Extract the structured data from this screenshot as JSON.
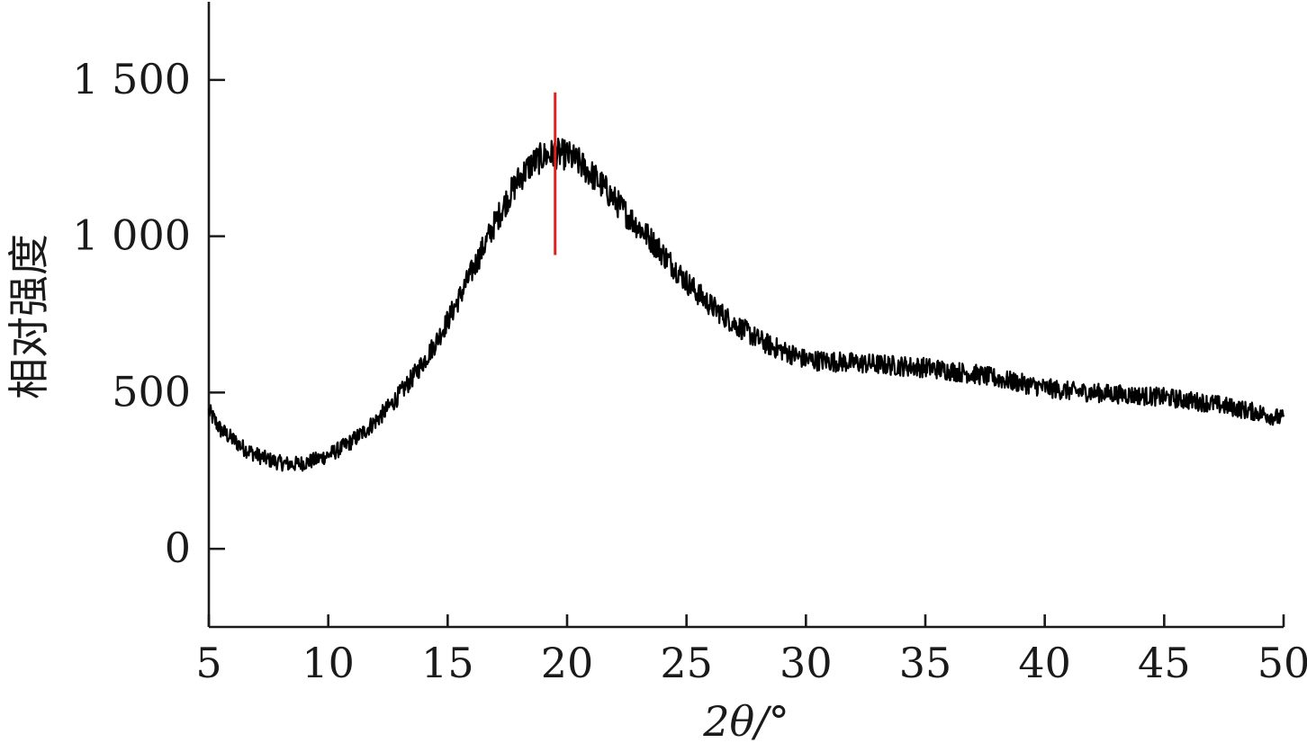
{
  "chart_data": {
    "type": "line",
    "title": "",
    "xlabel": "2θ/°",
    "ylabel": "相对强度",
    "xlim": [
      5,
      50
    ],
    "ylim": [
      -250,
      1750
    ],
    "x_ticks": [
      5,
      10,
      15,
      20,
      25,
      30,
      35,
      40,
      45,
      50
    ],
    "x_tick_labels": [
      "5",
      "10",
      "15",
      "20",
      "25",
      "30",
      "35",
      "40",
      "45",
      "50"
    ],
    "y_ticks": [
      0,
      500,
      1000,
      1500
    ],
    "y_tick_labels": [
      "0",
      "500",
      "1 000",
      "1 500"
    ],
    "grid": false,
    "legend": "none",
    "series": [
      {
        "color": "#000000",
        "x": [
          5,
          5.5,
          6,
          6.5,
          7,
          7.5,
          8,
          8.5,
          9,
          9.5,
          10,
          10.5,
          11,
          11.5,
          12,
          12.5,
          13,
          13.5,
          14,
          14.5,
          15,
          15.5,
          16,
          16.5,
          17,
          17.5,
          18,
          18.5,
          19,
          19.5,
          20,
          20.5,
          21,
          21.5,
          22,
          22.5,
          23,
          23.5,
          24,
          24.5,
          25,
          25.5,
          26,
          26.5,
          27,
          27.5,
          28,
          28.5,
          29,
          29.5,
          30,
          31,
          32,
          33,
          34,
          35,
          36,
          37,
          38,
          39,
          40,
          41,
          42,
          43,
          44,
          45,
          46,
          47,
          48,
          49,
          50
        ],
        "values": [
          440,
          380,
          350,
          320,
          300,
          285,
          275,
          270,
          275,
          285,
          300,
          320,
          345,
          375,
          410,
          450,
          495,
          545,
          600,
          660,
          730,
          805,
          885,
          965,
          1045,
          1120,
          1185,
          1230,
          1255,
          1265,
          1260,
          1235,
          1200,
          1160,
          1115,
          1070,
          1030,
          990,
          945,
          900,
          855,
          815,
          780,
          750,
          720,
          695,
          670,
          650,
          635,
          620,
          605,
          600,
          595,
          590,
          585,
          580,
          570,
          560,
          545,
          530,
          515,
          505,
          500,
          495,
          490,
          485,
          475,
          465,
          450,
          435,
          415
        ]
      }
    ],
    "marker_line": {
      "x": 19.5,
      "y_range": [
        940,
        1460
      ],
      "color": "#e02020"
    }
  }
}
